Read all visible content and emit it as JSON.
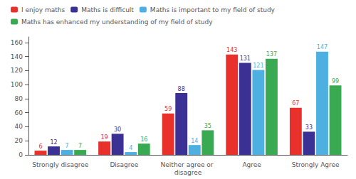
{
  "chart_data": {
    "type": "bar",
    "categories": [
      "Strongly disagree",
      "Disagree",
      "Neither agree or disagree",
      "Agree",
      "Strongly Agree"
    ],
    "series": [
      {
        "name": "I enjoy maths",
        "color": "#e8312a",
        "values": [
          6,
          19,
          59,
          143,
          67
        ]
      },
      {
        "name": "Maths is difficult",
        "color": "#3b3093",
        "values": [
          12,
          30,
          88,
          131,
          33
        ]
      },
      {
        "name": "Maths is important to my field of study",
        "color": "#4db0e1",
        "values": [
          7,
          4,
          14,
          121,
          147
        ]
      },
      {
        "name": "Maths has enhanced my understanding of my field of study",
        "color": "#3aaa52",
        "values": [
          7,
          16,
          35,
          137,
          99
        ]
      }
    ],
    "ylim": [
      0,
      168
    ],
    "yticks": [
      0,
      20,
      40,
      60,
      80,
      100,
      120,
      140,
      160
    ],
    "grid": false,
    "legend": "upper left",
    "data_labels": true
  }
}
